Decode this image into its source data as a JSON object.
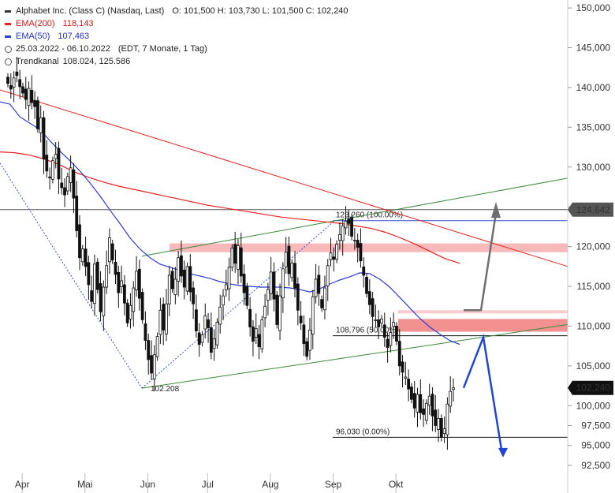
{
  "legend": {
    "title": "Alphabet Inc. (Class C) (Nasdaq, Last)",
    "ohlc": "O: 101,500  H: 103,730  L: 101,500  C: 102,240",
    "ema200_label": "EMA(200)",
    "ema200_value": "118,143",
    "ema50_label": "EMA(50)",
    "ema50_value": "107,463",
    "period": "25.03.2022 - 06.10.2022",
    "period_info": "(EDT, 7 Monate, 1 Tag)",
    "channel_label": "Trendkanal",
    "channel_value": "108.024, 125.586"
  },
  "colors": {
    "ema200": "#e8211e",
    "ema50": "#2b3cd8",
    "trend_channel": "#3a8a3a",
    "resistance_zone": "#f28b8b",
    "up_arrow": "#6f6f6f",
    "down_arrow": "#1f45d6",
    "fib_line": "#3a4bd8"
  },
  "price_labels": {
    "current_line": "124,642",
    "last_close": "102,240"
  },
  "annotations": {
    "fib_top": "123,260 (100.00%)",
    "fib_mid": "108,796 (50.00%)",
    "fib_low": "96,030 (0.00%)",
    "swing_low": "102.208"
  },
  "chart_data": {
    "type": "candlestick",
    "title": "Alphabet Inc. (Class C) (Nasdaq, Last)",
    "x_tick_labels": [
      "Apr",
      "Mai",
      "Jun",
      "Jul",
      "Aug",
      "Sep",
      "Okt"
    ],
    "y_ticks": [
      92.5,
      95,
      97.5,
      100,
      105,
      110,
      115,
      120,
      125,
      130,
      135,
      140,
      145,
      150
    ],
    "y_tick_labels": [
      "92,500",
      "95,000",
      "97,500",
      "100,000",
      "105,000",
      "110,000",
      "115,000",
      "120,000",
      "125,000",
      "130,000",
      "135,000",
      "140,000",
      "145,000",
      "150,000"
    ],
    "ylim": [
      91.5,
      151
    ],
    "close": [
      140.5,
      139.8,
      141.2,
      141.5,
      140.1,
      139.3,
      138.5,
      139.9,
      138.1,
      137.6,
      134.8,
      136.2,
      131.0,
      129.5,
      128.7,
      130.8,
      131.6,
      128.5,
      127.4,
      126.5,
      128.8,
      129.9,
      126.1,
      122.0,
      118.6,
      119.7,
      117.5,
      115.2,
      113.1,
      117.8,
      114.6,
      111.8,
      114.9,
      117.6,
      121.1,
      118.3,
      116.5,
      114.2,
      115.7,
      112.9,
      110.4,
      112.6,
      114.8,
      116.9,
      113.5,
      110.8,
      108.2,
      105.8,
      104.1,
      106.4,
      108.7,
      112.0,
      109.5,
      112.8,
      116.4,
      114.7,
      115.9,
      118.6,
      116.3,
      114.9,
      117.5,
      114.3,
      112.8,
      109.4,
      107.7,
      108.9,
      111.3,
      109.8,
      106.7,
      108.4,
      110.5,
      112.4,
      113.8,
      115.2,
      117.4,
      119.8,
      117.9,
      120.1,
      116.3,
      114.2,
      112.6,
      109.9,
      108.1,
      109.7,
      107.4,
      110.8,
      112.5,
      114.6,
      116.8,
      113.4,
      110.2,
      113.8,
      117.2,
      119.3,
      116.6,
      117.9,
      114.8,
      112.0,
      110.4,
      107.8,
      106.2,
      109.5,
      113.7,
      115.9,
      114.1,
      112.3,
      114.8,
      117.6,
      119.2,
      118.4,
      120.3,
      121.5,
      122.6,
      123.2,
      122.9,
      121.3,
      120.8,
      119.9,
      118.2,
      116.4,
      114.1,
      112.7,
      111.2,
      110.8,
      109.9,
      110.9,
      108.6,
      107.3,
      109.2,
      110.5,
      108.1,
      105.0,
      104.2,
      103.6,
      102.1,
      100.8,
      99.7,
      101.4,
      99.1,
      98.9,
      100.3,
      101.2,
      98.7,
      97.5,
      98.4,
      96.0,
      97.1,
      100.2,
      101.8,
      102.24
    ],
    "ema50": [
      138.2,
      137.9,
      136.3,
      135.5,
      134.7,
      133.3,
      132.0,
      130.8,
      129.5,
      128.0,
      126.4,
      124.6,
      122.9,
      121.1,
      119.7,
      118.6,
      117.8,
      117.4,
      117.0,
      116.6,
      116.3,
      116.0,
      115.6,
      115.3,
      115.1,
      115.0,
      114.9,
      114.9,
      114.9,
      114.8,
      114.6,
      114.3,
      114.7,
      115.3,
      115.8,
      116.2,
      116.7,
      116.6,
      115.9,
      114.9,
      113.6,
      112.3,
      111.0,
      109.9,
      109.0,
      108.2,
      107.7
    ],
    "ema200": [
      131.9,
      131.8,
      131.5,
      131.0,
      130.3,
      129.4,
      128.7,
      128.1,
      127.6,
      127.2,
      126.8,
      126.4,
      126.0,
      125.6,
      125.2,
      124.9,
      124.6,
      124.3,
      124.0,
      123.7,
      123.5,
      123.3,
      123.1,
      122.9,
      122.6,
      122.3,
      121.8,
      121.1,
      120.3,
      119.4,
      118.5,
      117.9
    ],
    "horizontal_line": 124.642,
    "trend_channel": {
      "upper": [
        118.8,
        128.6
      ],
      "lower": [
        102.2,
        110.2
      ],
      "label": "Trendkanal"
    },
    "ema200_channel_line": {
      "from": 139.7,
      "to": 117.5
    },
    "fibonacci": [
      {
        "price": 123.26,
        "label": "123,260 (100.00%)"
      },
      {
        "price": 108.796,
        "label": "108,796 (50.00%)"
      },
      {
        "price": 96.03,
        "label": "96,030 (0.00%)"
      }
    ],
    "resistance_zones": [
      [
        119.3,
        120.4
      ],
      [
        109.3,
        110.9
      ],
      [
        111.6,
        112.0
      ]
    ],
    "scenario_up": [
      [
        112.0,
        112.0
      ],
      [
        124.2,
        125.3
      ]
    ],
    "scenario_down": [
      [
        102.24,
        108.6
      ],
      [
        108.6,
        93.7
      ]
    ]
  }
}
